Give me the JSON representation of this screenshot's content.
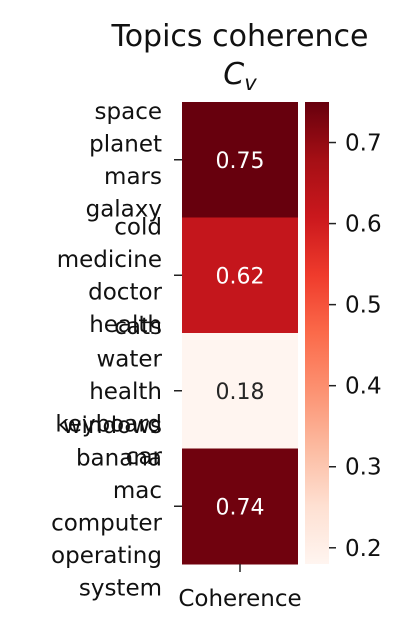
{
  "chart_data": {
    "type": "heatmap",
    "title": "Topics coherence",
    "subtitle_main": "C",
    "subtitle_sub": "v",
    "x_categories": [
      "Coherence"
    ],
    "rows": [
      {
        "label_lines": [
          "space",
          "planet",
          "mars",
          "galaxy"
        ],
        "value": 0.75,
        "value_label": "0.75"
      },
      {
        "label_lines": [
          "cold",
          "medicine",
          "doctor",
          "health"
        ],
        "value": 0.62,
        "value_label": "0.62"
      },
      {
        "label_lines": [
          "cats",
          "water",
          "health",
          "keyboard",
          "car"
        ],
        "value": 0.18,
        "value_label": "0.18"
      },
      {
        "label_lines": [
          "windows",
          "banana",
          "mac",
          "computer",
          "operating",
          "system"
        ],
        "value": 0.74,
        "value_label": "0.74"
      }
    ],
    "colorbar": {
      "colormap": "Reds",
      "vmin": 0.18,
      "vmax": 0.75,
      "ticks": [
        0.2,
        0.3,
        0.4,
        0.5,
        0.6,
        0.7
      ],
      "tick_labels": [
        "0.2",
        "0.3",
        "0.4",
        "0.5",
        "0.6",
        "0.7"
      ]
    },
    "colors": {
      "low": "#fff5f0",
      "high": "#67000d",
      "text_light": "#ffffff",
      "text_dark": "#262626"
    }
  }
}
